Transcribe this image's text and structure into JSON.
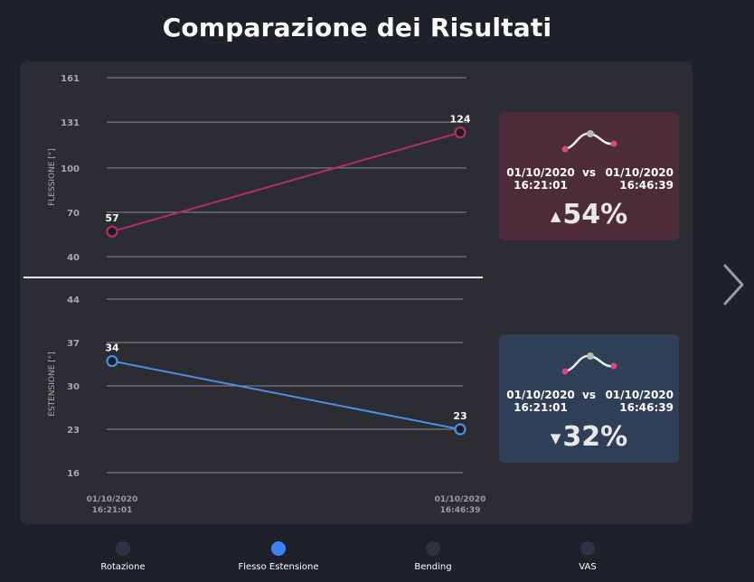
{
  "page": {
    "title": "Comparazione dei Risultati"
  },
  "chart_data": [
    {
      "type": "line",
      "ylabel": "FLESSIONE [°]",
      "yticks": [
        "161",
        "131",
        "100",
        "70",
        "40"
      ],
      "ylim": [
        40,
        161
      ],
      "x": [
        "01/10/2020 16:21:01",
        "01/10/2020 16:46:39"
      ],
      "values": [
        57,
        124
      ],
      "value_labels": [
        "57",
        "124"
      ],
      "color": "#b3305a",
      "grid": true
    },
    {
      "type": "line",
      "ylabel": "ESTENSIONE [°]",
      "yticks": [
        "44",
        "37",
        "30",
        "23",
        "16"
      ],
      "ylim": [
        16,
        44
      ],
      "x": [
        "01/10/2020 16:21:01",
        "01/10/2020 16:46:39"
      ],
      "x_tick_labels": [
        {
          "date": "01/10/2020",
          "time": "16:21:01"
        },
        {
          "date": "01/10/2020",
          "time": "16:46:39"
        }
      ],
      "values": [
        34,
        23
      ],
      "value_labels": [
        "34",
        "23"
      ],
      "color": "#4a8fe6",
      "grid": true
    }
  ],
  "cards": {
    "flessione": {
      "date1": "01/10/2020",
      "time1": "16:21:01",
      "vs": "vs",
      "date2": "01/10/2020",
      "time2": "16:46:39",
      "arrow": "▲",
      "percent": "54%",
      "direction": "up",
      "background": "#4e2b39"
    },
    "estensione": {
      "date1": "01/10/2020",
      "time1": "16:21:01",
      "vs": "vs",
      "date2": "01/10/2020",
      "time2": "16:46:39",
      "arrow": "▼",
      "percent": "32%",
      "direction": "down",
      "background": "#2f3f58"
    }
  },
  "nav": {
    "next_icon": "chevron-right-icon",
    "items": [
      {
        "label": "Rotazione",
        "active": false
      },
      {
        "label": "Flesso Estensione",
        "active": true
      },
      {
        "label": "Bending",
        "active": false
      },
      {
        "label": "VAS",
        "active": false
      }
    ]
  },
  "colors": {
    "accent": "#3b82f6",
    "flessione": "#b3305a",
    "estensione": "#4a8fe6"
  }
}
